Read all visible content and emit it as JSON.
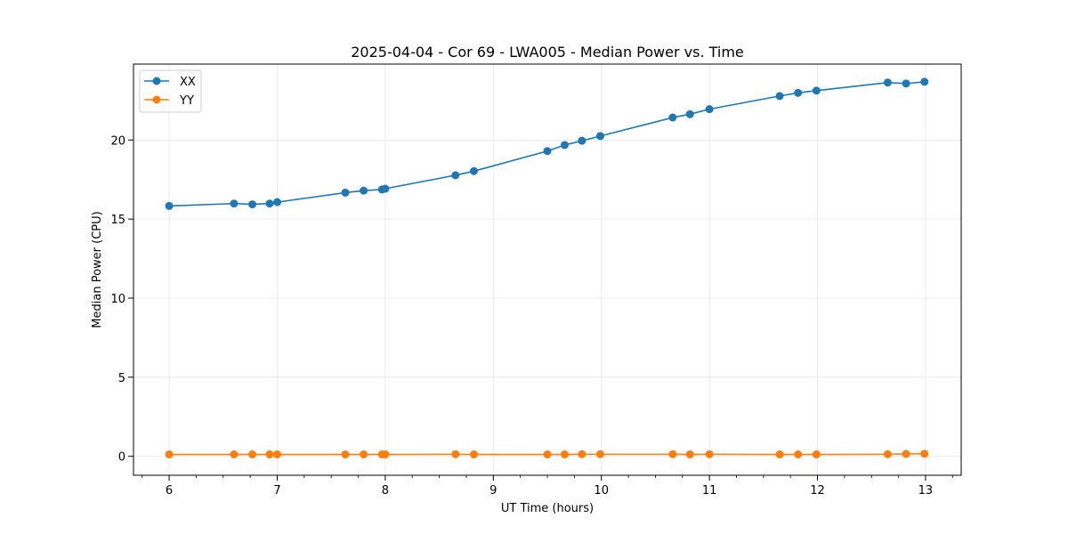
{
  "chart_data": {
    "type": "line",
    "title": "2025-04-04 - Cor 69 - LWA005 - Median Power vs. Time",
    "xlabel": "UT Time (hours)",
    "ylabel": "Median Power (CPU)",
    "xlim": [
      5.67,
      13.33
    ],
    "ylim": [
      -1.2,
      24.8
    ],
    "xticks": [
      6,
      7,
      8,
      9,
      10,
      11,
      12,
      13
    ],
    "yticks": [
      0,
      5,
      10,
      15,
      20
    ],
    "minor_xtick_step": 0.25,
    "grid": true,
    "legend_position": "top-left",
    "series": [
      {
        "name": "XX",
        "color": "#1f77b4",
        "x": [
          6.0,
          6.6,
          6.77,
          6.93,
          7.0,
          7.63,
          7.8,
          7.97,
          8.0,
          8.65,
          8.82,
          9.5,
          9.66,
          9.82,
          9.99,
          10.66,
          10.82,
          11.0,
          11.65,
          11.82,
          11.99,
          12.65,
          12.82,
          12.99
        ],
        "y": [
          15.83,
          15.98,
          15.93,
          15.98,
          16.07,
          16.67,
          16.8,
          16.87,
          16.92,
          17.77,
          18.03,
          19.3,
          19.68,
          19.95,
          20.25,
          21.42,
          21.63,
          21.95,
          22.78,
          22.98,
          23.12,
          23.63,
          23.57,
          23.68
        ]
      },
      {
        "name": "YY",
        "color": "#ff7f0e",
        "x": [
          6.0,
          6.6,
          6.77,
          6.93,
          7.0,
          7.63,
          7.8,
          7.97,
          8.0,
          8.65,
          8.82,
          9.5,
          9.66,
          9.82,
          9.99,
          10.66,
          10.82,
          11.0,
          11.65,
          11.82,
          11.99,
          12.65,
          12.82,
          12.99
        ],
        "y": [
          0.12,
          0.12,
          0.12,
          0.12,
          0.12,
          0.12,
          0.12,
          0.12,
          0.12,
          0.13,
          0.12,
          0.12,
          0.12,
          0.13,
          0.13,
          0.13,
          0.12,
          0.13,
          0.12,
          0.12,
          0.12,
          0.13,
          0.15,
          0.16
        ]
      }
    ]
  }
}
